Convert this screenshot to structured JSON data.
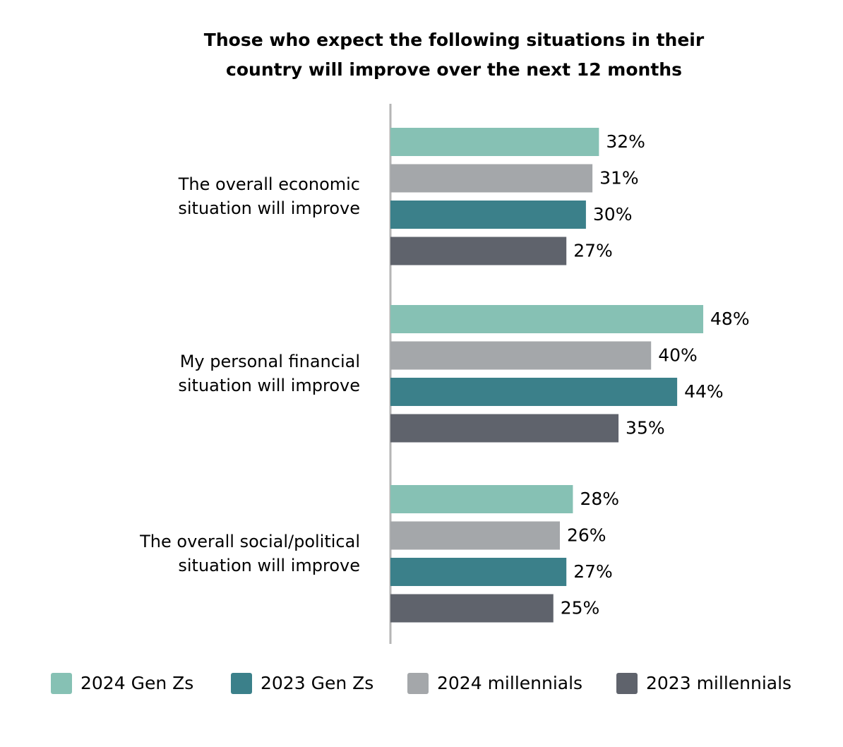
{
  "chart_data": {
    "type": "bar",
    "orientation": "horizontal",
    "title": "Those who expect the following situations in their country will improve over the next 12 months",
    "categories": [
      "The overall economic situation will improve",
      "My personal financial situation will improve",
      "The overall social/political situation will improve"
    ],
    "series": [
      {
        "name": "2024 Gen Zs",
        "color": "#86c1b4",
        "values": [
          32,
          48,
          28
        ],
        "value_labels": [
          "32%",
          "48%",
          "28%"
        ]
      },
      {
        "name": "2024 millennials",
        "color": "#a4a7aa",
        "values": [
          31,
          40,
          26
        ],
        "value_labels": [
          "31%",
          "40%",
          "26%"
        ]
      },
      {
        "name": "2023 Gen Zs",
        "color": "#3b808a",
        "values": [
          30,
          44,
          27
        ],
        "value_labels": [
          "30%",
          "44%",
          "27%"
        ]
      },
      {
        "name": "2023 millennials",
        "color": "#5f636c",
        "values": [
          27,
          35,
          25
        ],
        "value_labels": [
          "27%",
          "35%",
          "25%"
        ]
      }
    ]
  }
}
